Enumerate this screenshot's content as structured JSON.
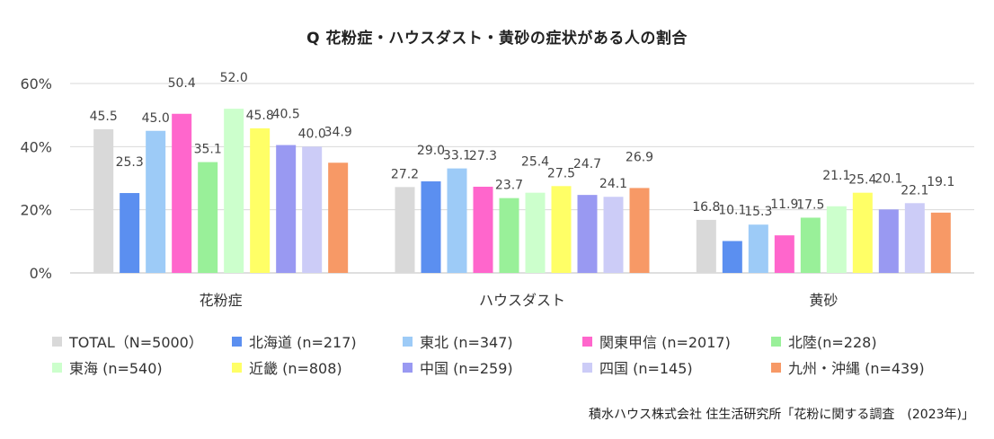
{
  "title": "Q 花粉症・ハウスダスト・黄砂の症状がある人の割合",
  "source": "積水ハウス株式会社 住生活研究所「花粉に関する調査　(2023年)」",
  "chart_data": {
    "type": "bar",
    "title": "Q 花粉症・ハウスダスト・黄砂の症状がある人の割合",
    "categories": [
      "花粉症",
      "ハウスダスト",
      "黄砂"
    ],
    "ylim": [
      0,
      60
    ],
    "yticks": [
      0,
      20,
      40,
      60
    ],
    "ytick_labels": [
      "0%",
      "20%",
      "40%",
      "60%"
    ],
    "grid": true,
    "legend_position": "bottom",
    "series": [
      {
        "name": "TOTAL（N=5000）",
        "color": "#d9d9d9",
        "values": [
          45.5,
          27.2,
          16.8
        ]
      },
      {
        "name": "北海道 (n=217)",
        "color": "#5b8ff0",
        "values": [
          25.3,
          29.0,
          10.1
        ]
      },
      {
        "name": "東北 (n=347)",
        "color": "#9dcbf7",
        "values": [
          45.0,
          33.1,
          15.3
        ]
      },
      {
        "name": "関東甲信 (n=2017)",
        "color": "#ff66cc",
        "values": [
          50.4,
          27.3,
          11.9
        ]
      },
      {
        "name": "北陸(n=228)",
        "color": "#99f099",
        "values": [
          35.1,
          23.7,
          17.5
        ]
      },
      {
        "name": "東海 (n=540)",
        "color": "#ccffcc",
        "values": [
          52.0,
          25.4,
          21.1
        ]
      },
      {
        "name": "近畿 (n=808)",
        "color": "#ffff66",
        "values": [
          45.8,
          27.5,
          25.4
        ]
      },
      {
        "name": "中国 (n=259)",
        "color": "#9999f2",
        "values": [
          40.5,
          24.7,
          20.1
        ]
      },
      {
        "name": "四国 (n=145)",
        "color": "#ccccf7",
        "values": [
          40.0,
          24.1,
          22.1
        ]
      },
      {
        "name": "九州・沖縄 (n=439)",
        "color": "#f79966",
        "values": [
          34.9,
          26.9,
          19.1
        ]
      }
    ]
  }
}
